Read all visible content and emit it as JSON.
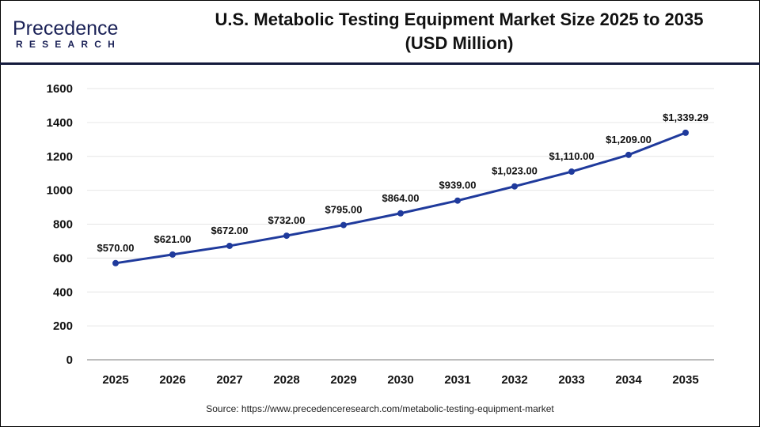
{
  "logo": {
    "line1": "Precedence",
    "line2": "RESEARCH"
  },
  "title_line1": "U.S. Metabolic Testing Equipment Market Size 2025 to 2035",
  "title_line2": "(USD Million)",
  "source": "Source: https://www.precedenceresearch.com/metabolic-testing-equipment-market",
  "colors": {
    "line": "#1f3a9c",
    "header_rule": "#141a3c",
    "grid": "#e6e6e6"
  },
  "chart_data": {
    "type": "line",
    "title": "U.S. Metabolic Testing Equipment Market Size 2025 to 2035 (USD Million)",
    "categories": [
      "2025",
      "2026",
      "2027",
      "2028",
      "2029",
      "2030",
      "2031",
      "2032",
      "2033",
      "2034",
      "2035"
    ],
    "series": [
      {
        "values": [
          570,
          621,
          672,
          732,
          795,
          864,
          939,
          1023,
          1110,
          1209,
          1339.29
        ]
      }
    ],
    "data_labels": [
      "$570.00",
      "$621.00",
      "$672.00",
      "$732.00",
      "$795.00",
      "$864.00",
      "$939.00",
      "$1,023.00",
      "$1,110.00",
      "$1,209.00",
      "$1,339.29"
    ],
    "yticks": [
      0,
      200,
      400,
      600,
      800,
      1000,
      1200,
      1400,
      1600
    ],
    "ylim": [
      0,
      1600
    ],
    "grid": true,
    "legend": "none"
  }
}
